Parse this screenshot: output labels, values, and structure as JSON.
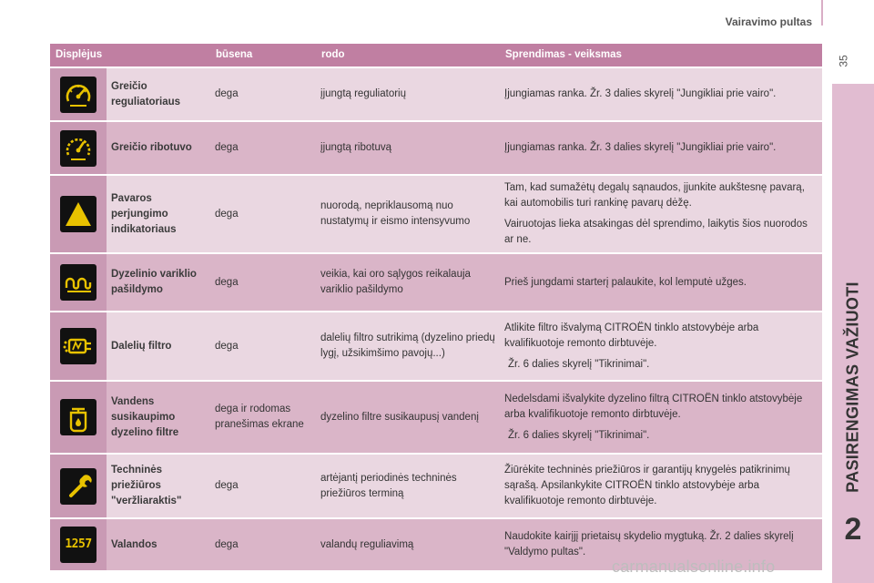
{
  "header": {
    "title": "Vairavimo pultas",
    "page_number": "35"
  },
  "sidebar": {
    "section_title": "PASIRENGIMAS VAŽIUOTI",
    "chapter_number": "2"
  },
  "table": {
    "columns": [
      "Displėjus",
      "būsena",
      "rodo",
      "Sprendimas - veiksmas"
    ],
    "rows": [
      {
        "icon": "speed-regulator-icon",
        "name": "Greičio reguliatoriaus",
        "state": "dega",
        "indicates": "įjungtą reguliatorių",
        "action": [
          "Įjungiamas ranka. Žr. 3 dalies skyrelį \"Jungikliai prie vairo\"."
        ]
      },
      {
        "icon": "speed-limiter-icon",
        "name": "Greičio ribotuvo",
        "state": "dega",
        "indicates": "įjungtą ribotuvą",
        "action": [
          "Įjungiamas ranka. Žr. 3 dalies skyrelį \"Jungikliai prie vairo\"."
        ]
      },
      {
        "icon": "warning-triangle-icon",
        "name": "Pavaros perjungimo indikatoriaus",
        "state": "dega",
        "indicates": "nuorodą, nepriklausomą nuo nustatymų ir eismo intensyvumo",
        "action": [
          "Tam, kad sumažėtų degalų sąnaudos, įjunkite aukštesnę pavarą, kai automobilis turi rankinę pavarų dėžę.",
          "Vairuotojas lieka atsakingas dėl sprendimo, laikytis šios nuorodos ar ne."
        ]
      },
      {
        "icon": "glow-plug-icon",
        "name": "Dyzelinio variklio pašildymo",
        "state": "dega",
        "indicates": "veikia, kai oro sąlygos reikalauja variklio pašildymo",
        "action": [
          "Prieš jungdami starterį palaukite, kol lemputė užges."
        ]
      },
      {
        "icon": "particle-filter-icon",
        "name": "Dalelių filtro",
        "state": "dega",
        "indicates": "dalelių filtro sutrikimą (dyzelino priedų lygį, užsikimšimo pavojų...)",
        "action": [
          "Atlikite filtro išvalymą CITROËN tinklo atstovybėje arba kvalifikuotoje remonto dirbtuvėje.",
          "Žr. 6 dalies skyrelį \"Tikrinimai\"."
        ]
      },
      {
        "icon": "water-in-diesel-icon",
        "name": "Vandens susikaupimo dyzelino filtre",
        "state": "dega ir rodomas pranešimas ekrane",
        "indicates": "dyzelino filtre susikaupusį vandenį",
        "action": [
          "Nedelsdami išvalykite dyzelino filtrą CITROËN tinklo atstovybėje arba kvalifikuotoje remonto dirbtuvėje.",
          "Žr. 6 dalies skyrelį \"Tikrinimai\"."
        ]
      },
      {
        "icon": "wrench-icon",
        "name": "Techninės priežiūros \"veržliaraktis\"",
        "state": "dega",
        "indicates": "artėjantį periodinės techninės priežiūros terminą",
        "action": [
          "Žiūrėkite techninės priežiūros ir garantijų knygelės patikrinimų sąrašą. Apsilankykite CITROËN tinklo atstovybėje arba kvalifikuotoje remonto dirbtuvėje."
        ]
      },
      {
        "icon": "hour-display-icon",
        "display_digits": "1257",
        "name": "Valandos",
        "state": "dega",
        "indicates": "valandų reguliavimą",
        "action": [
          "Naudokite kairįjį prietaisų skydelio mygtuką. Žr. 2 dalies skyrelį \"Valdymo pultas\"."
        ]
      }
    ]
  },
  "watermark": "carmanualsonline.info"
}
